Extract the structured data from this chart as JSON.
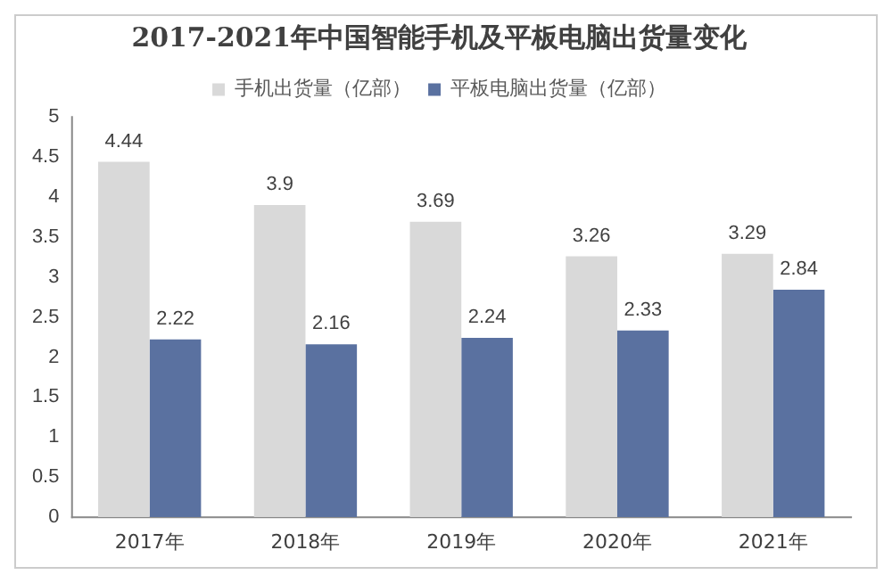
{
  "chart_data": {
    "type": "bar",
    "title": "2017-2021年中国智能手机及平板电脑出货量变化",
    "categories": [
      "2017年",
      "2018年",
      "2019年",
      "2020年",
      "2021年"
    ],
    "series": [
      {
        "name": "手机出货量（亿部）",
        "color": "#d9d9d9",
        "values": [
          4.44,
          3.9,
          3.69,
          3.26,
          3.29
        ]
      },
      {
        "name": "平板电脑出货量（亿部）",
        "color": "#5a71a0",
        "values": [
          2.22,
          2.16,
          2.24,
          2.33,
          2.84
        ]
      }
    ],
    "ylim": [
      0,
      5
    ],
    "yticks": [
      0,
      0.5,
      1,
      1.5,
      2,
      2.5,
      3,
      3.5,
      4,
      4.5,
      5
    ],
    "grid": false,
    "legend": "top",
    "data_labels": true
  }
}
